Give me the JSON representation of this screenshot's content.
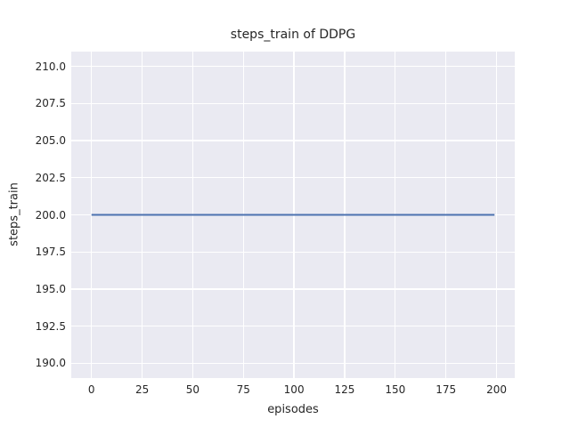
{
  "chart_data": {
    "type": "line",
    "title": "steps_train of DDPG",
    "xlabel": "episodes",
    "ylabel": "steps_train",
    "xlim": [
      -10,
      209
    ],
    "ylim": [
      189,
      211
    ],
    "x_ticks": [
      0,
      25,
      50,
      75,
      100,
      125,
      150,
      175,
      200
    ],
    "x_tick_labels": [
      "0",
      "25",
      "50",
      "75",
      "100",
      "125",
      "150",
      "175",
      "200"
    ],
    "y_ticks": [
      190.0,
      192.5,
      195.0,
      197.5,
      200.0,
      202.5,
      205.0,
      207.5,
      210.0
    ],
    "y_tick_labels": [
      "190.0",
      "192.5",
      "195.0",
      "197.5",
      "200.0",
      "202.5",
      "205.0",
      "207.5",
      "210.0"
    ],
    "grid": true,
    "legend": null,
    "plot_background": "#eaeaf2",
    "grid_color": "#ffffff",
    "series": [
      {
        "name": "steps_train",
        "color": "#4c72b0",
        "x": [
          0,
          199
        ],
        "y": [
          200,
          200
        ],
        "description": "constant value 200 for every episode from 0 to 199"
      }
    ]
  }
}
